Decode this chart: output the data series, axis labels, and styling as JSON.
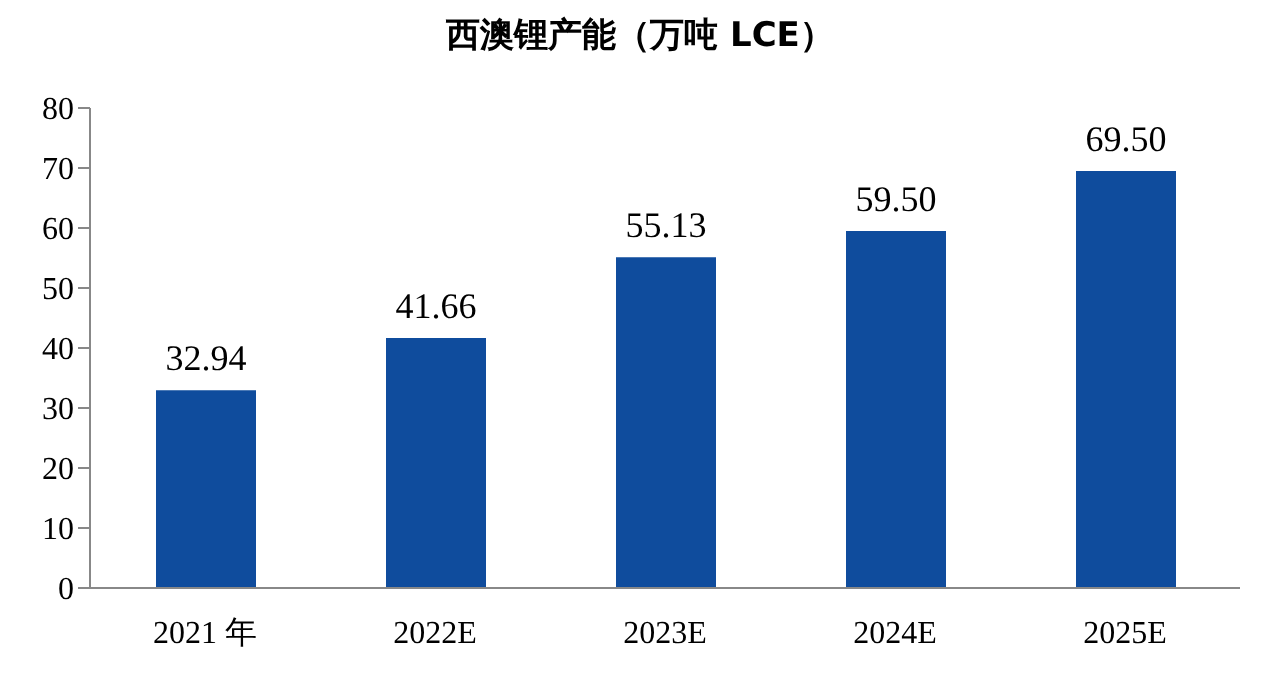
{
  "chart_data": {
    "type": "bar",
    "title": "西澳锂产能（万吨 LCE）",
    "categories": [
      "2021 年",
      "2022E",
      "2023E",
      "2024E",
      "2025E"
    ],
    "values": [
      32.94,
      41.66,
      55.13,
      59.5,
      69.5
    ],
    "value_labels": [
      "32.94",
      "41.66",
      "55.13",
      "59.50",
      "69.50"
    ],
    "color": "#0f4c9d",
    "ylim": [
      0,
      80
    ],
    "yticks": [
      0,
      10,
      20,
      30,
      40,
      50,
      60,
      70,
      80
    ],
    "grid": false
  }
}
